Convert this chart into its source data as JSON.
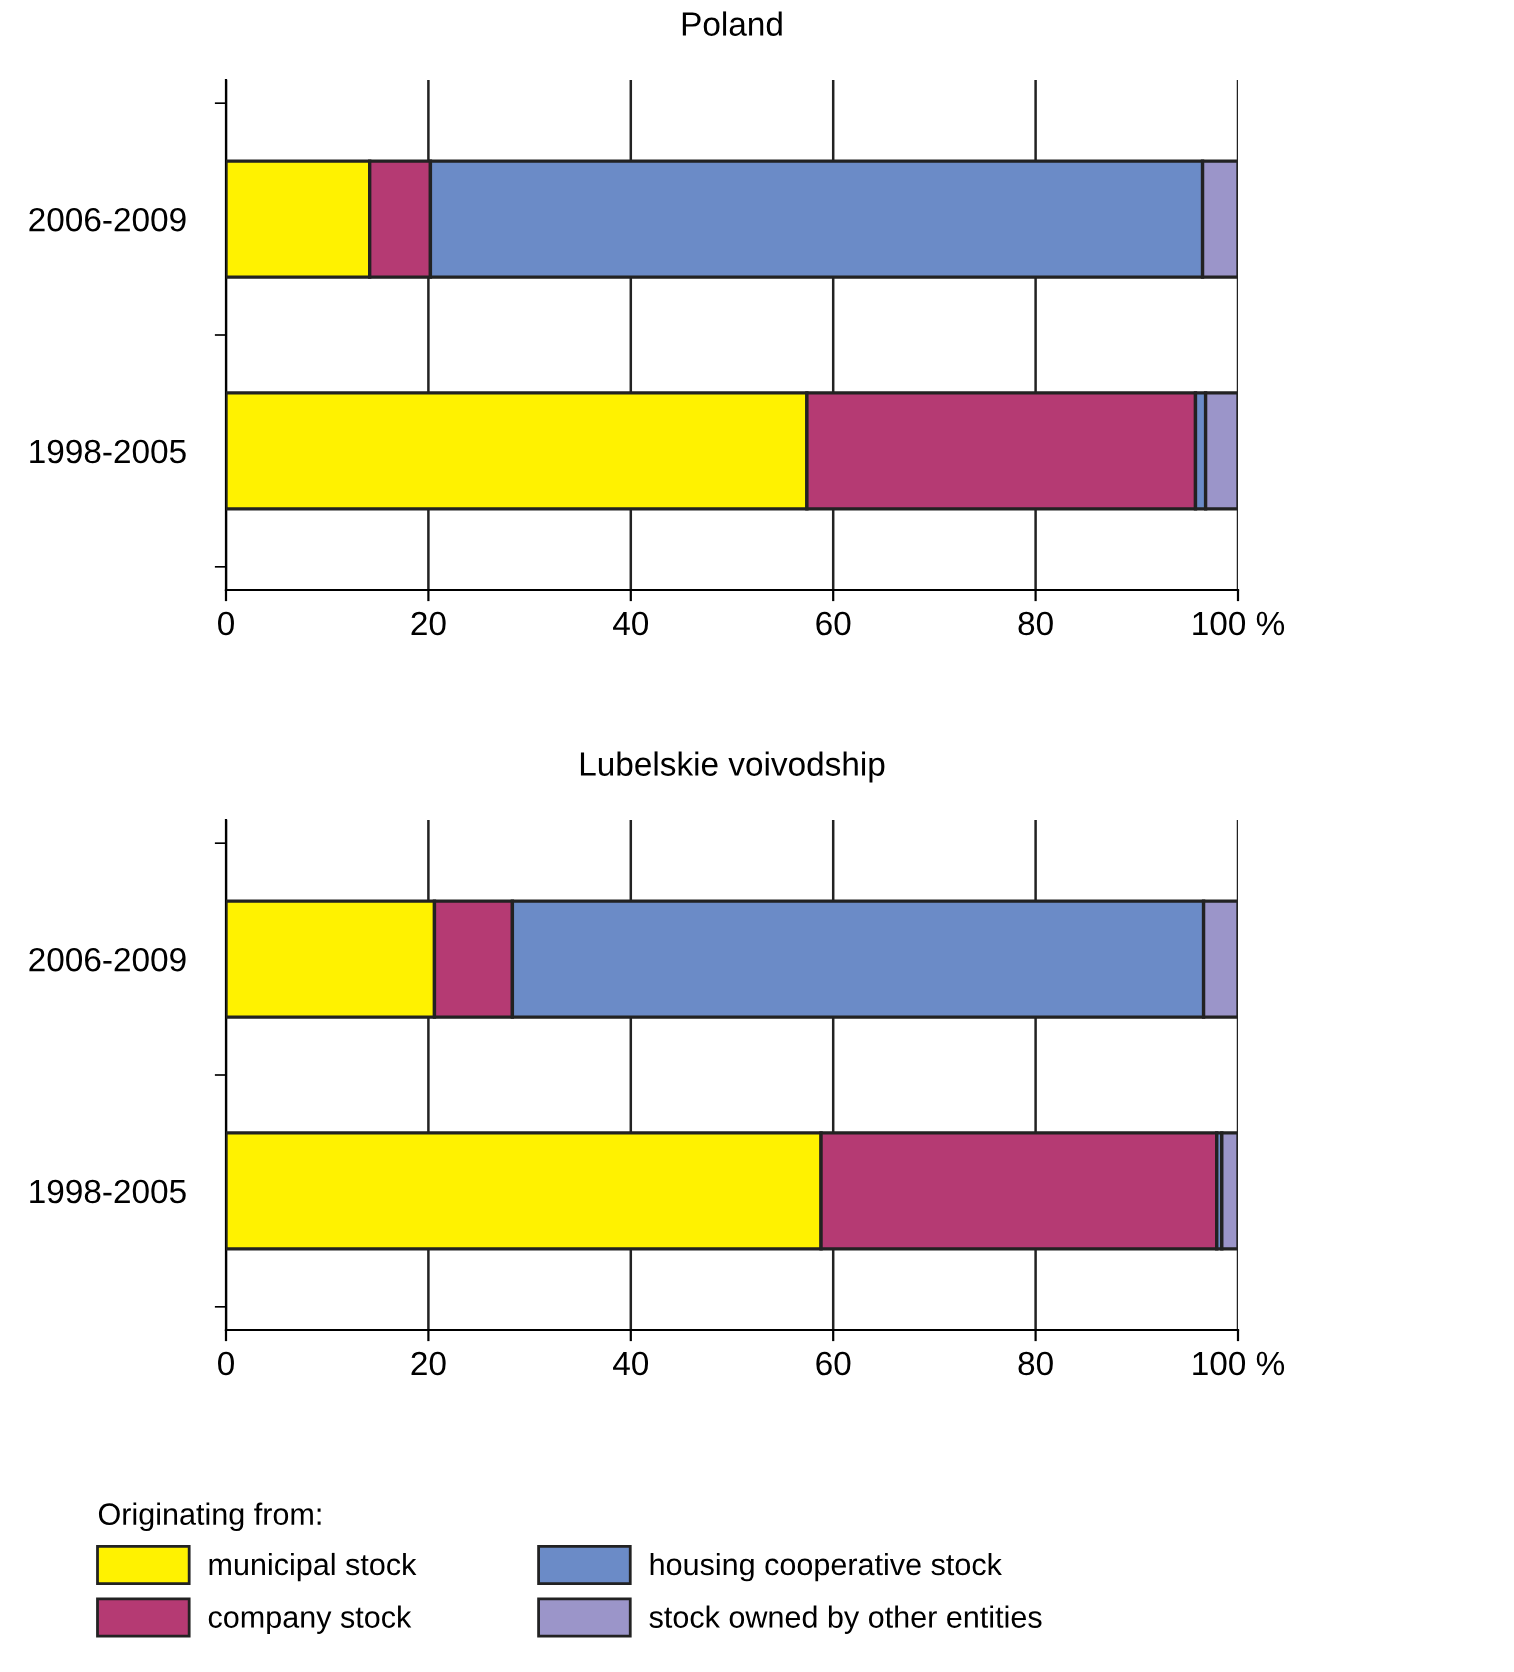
{
  "chart_data": [
    {
      "type": "bar",
      "orientation": "horizontal",
      "stacked": true,
      "title": "Poland",
      "categories": [
        "2006-2009",
        "1998-2005"
      ],
      "series": [
        {
          "color": "#fff200",
          "values": [
            14.2,
            57.4
          ]
        },
        {
          "color": "#b53a73",
          "values": [
            6.0,
            38.4
          ]
        },
        {
          "color": "#6b8bc7",
          "values": [
            76.3,
            1.0
          ]
        },
        {
          "color": "#9b95c9",
          "values": [
            3.5,
            3.2
          ]
        }
      ],
      "xlim": [
        0,
        100
      ],
      "xticks": [
        0,
        20,
        40,
        60,
        80,
        {
          "value": 100,
          "label": "100 %"
        }
      ],
      "grid": "x"
    },
    {
      "type": "bar",
      "orientation": "horizontal",
      "stacked": true,
      "title": "Lubelskie voivodship",
      "categories": [
        "2006-2009",
        "1998-2005"
      ],
      "series": [
        {
          "name": "municipal stock",
          "color": "#fff200",
          "values": [
            20.6,
            58.8
          ]
        },
        {
          "name": "company stock",
          "color": "#b53a73",
          "values": [
            7.7,
            39.1
          ]
        },
        {
          "name": "housing cooperative stock",
          "color": "#6b8bc7",
          "values": [
            68.3,
            0.5
          ]
        },
        {
          "name": "stock owned by other entities",
          "color": "#9b95c9",
          "values": [
            3.4,
            1.6
          ]
        }
      ],
      "xlim": [
        0,
        100
      ],
      "xticks": [
        0,
        20,
        40,
        60,
        80,
        {
          "value": 100,
          "label": "100 %"
        }
      ],
      "grid": "x",
      "legend": "bottom",
      "legend_title": "Originating from:"
    }
  ]
}
